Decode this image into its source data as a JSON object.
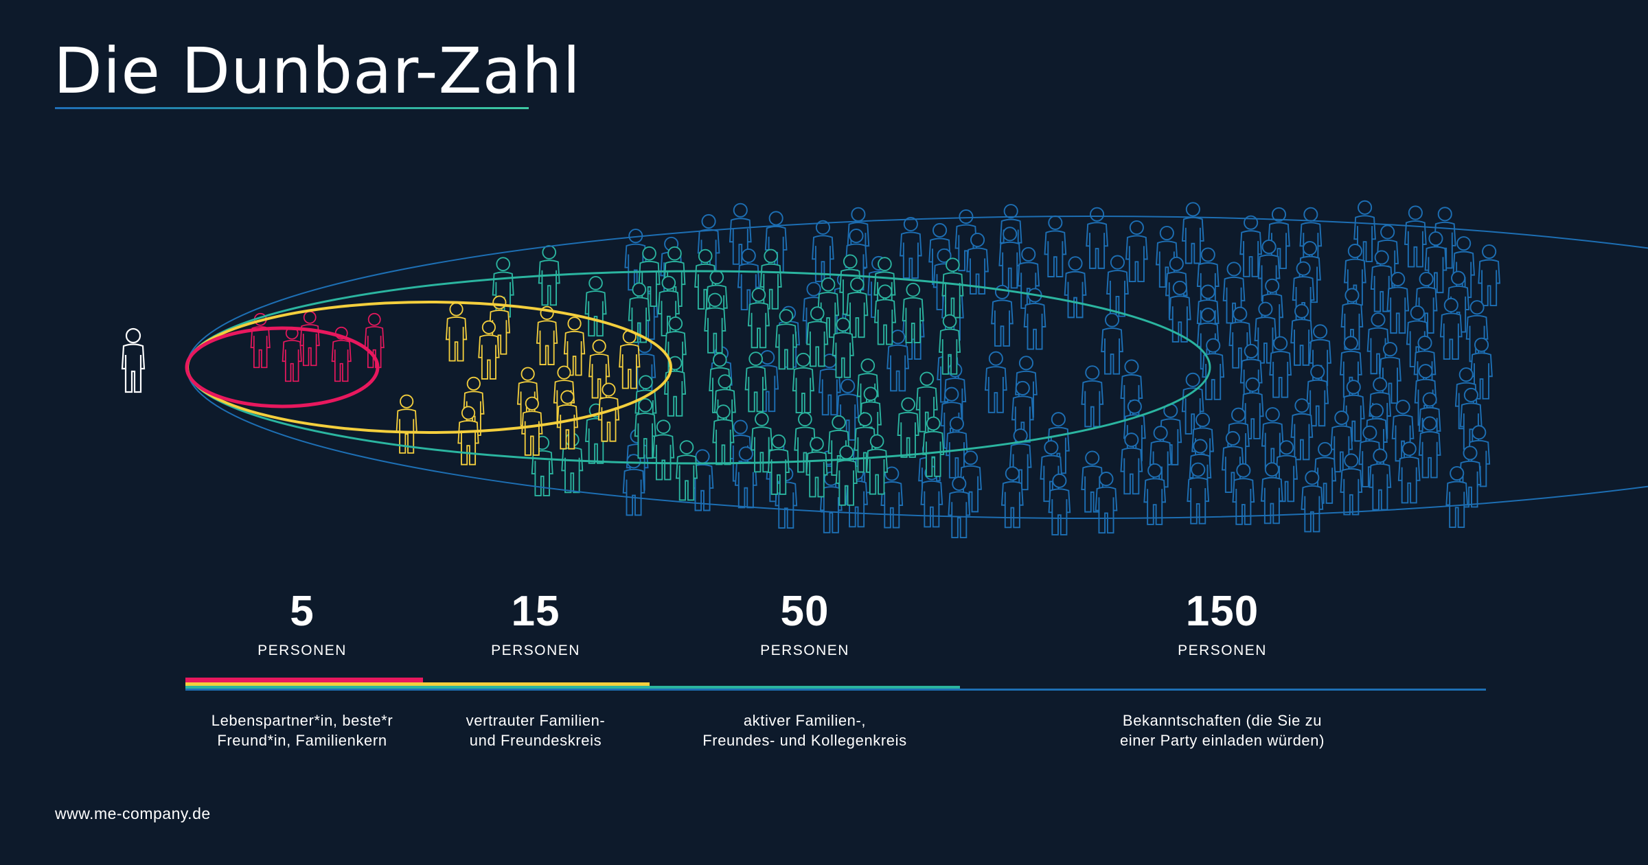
{
  "title": "Die Dunbar-Zahl",
  "footer": "www.me-company.de",
  "colors": {
    "background": "#0d1a2b",
    "circle_5": "#e8185e",
    "circle_15": "#f4cf3d",
    "circle_50": "#2bb5a0",
    "circle_150": "#1d6fb4",
    "self": "#ffffff"
  },
  "groups": [
    {
      "number": "5",
      "unit": "PERSONEN",
      "description": "Lebenspartner*in, beste*r\nFreund*in, Familienkern",
      "color": "#e8185e"
    },
    {
      "number": "15",
      "unit": "PERSONEN",
      "description": "vertrauter Familien-\nund Freundeskreis",
      "color": "#f4cf3d"
    },
    {
      "number": "50",
      "unit": "PERSONEN",
      "description": "aktiver Familien-,\nFreundes- und Kollegenkreis",
      "color": "#2bb5a0"
    },
    {
      "number": "150",
      "unit": "PERSONEN",
      "description": "Bekanntschaften (die Sie zu\neiner Party einladen würden)",
      "color": "#1d6fb4"
    }
  ],
  "icons": {
    "self": "person-icon",
    "people": "person-icon"
  }
}
